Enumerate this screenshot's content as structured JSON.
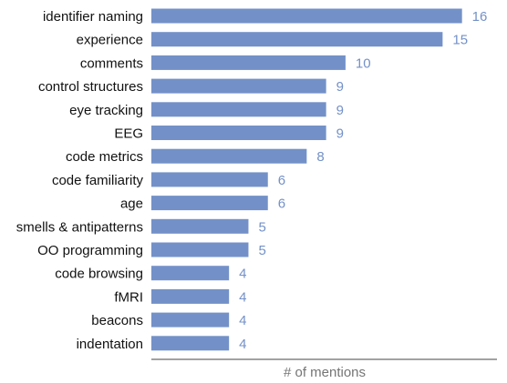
{
  "chart_data": {
    "type": "bar",
    "orientation": "horizontal",
    "categories": [
      "identifier naming",
      "experience",
      "comments",
      "control structures",
      "eye tracking",
      "EEG",
      "code metrics",
      "code familiarity",
      "age",
      "smells & antipatterns",
      "OO programming",
      "code browsing",
      "fMRI",
      "beacons",
      "indentation"
    ],
    "values": [
      16,
      15,
      10,
      9,
      9,
      9,
      8,
      6,
      6,
      5,
      5,
      4,
      4,
      4,
      4
    ],
    "title": "",
    "xlabel": "# of mentions",
    "ylabel": "",
    "xlim": [
      0,
      17.8
    ],
    "grid": false,
    "data_labels": true,
    "colors": {
      "bar": "#7391c8",
      "value_label": "#7391c8",
      "category_label": "#111111",
      "axis_line": "#444444",
      "axis_title": "#757575"
    }
  }
}
